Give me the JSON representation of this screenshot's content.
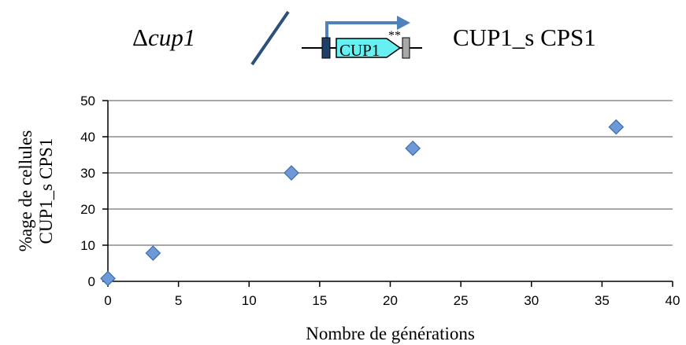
{
  "header": {
    "delta_symbol": "Δ",
    "left_strain": "cup1",
    "construct_gene_label": "CUP1",
    "construct_marks": "**",
    "right_strain": "CUP1_s CPS1"
  },
  "colors": {
    "marker_fill": "#6d99d6",
    "marker_stroke": "#3d6bb0",
    "slash": "#2d4f7c",
    "promoter_box": "#1f3f6b",
    "cds_fill": "#66f0f2",
    "terminator_fill": "#a8a8a8",
    "arrow": "#4f81bd",
    "grid": "#8c8c8c"
  },
  "chart_data": {
    "type": "scatter",
    "xlabel": "Nombre de générations",
    "ylabel_lines": [
      "%age de cellules",
      "CUP1_s CPS1"
    ],
    "xlim": [
      0,
      40
    ],
    "ylim": [
      0,
      50
    ],
    "xticks": [
      "0",
      "5",
      "10",
      "15",
      "20",
      "25",
      "30",
      "35",
      "40"
    ],
    "yticks": [
      "0",
      "10",
      "20",
      "30",
      "40",
      "50"
    ],
    "grid": "horizontal",
    "marker": "diamond",
    "points": [
      {
        "x": 0,
        "y": 0.8
      },
      {
        "x": 3.2,
        "y": 7.8
      },
      {
        "x": 13,
        "y": 30
      },
      {
        "x": 21.6,
        "y": 36.8
      },
      {
        "x": 36,
        "y": 42.7
      }
    ]
  }
}
